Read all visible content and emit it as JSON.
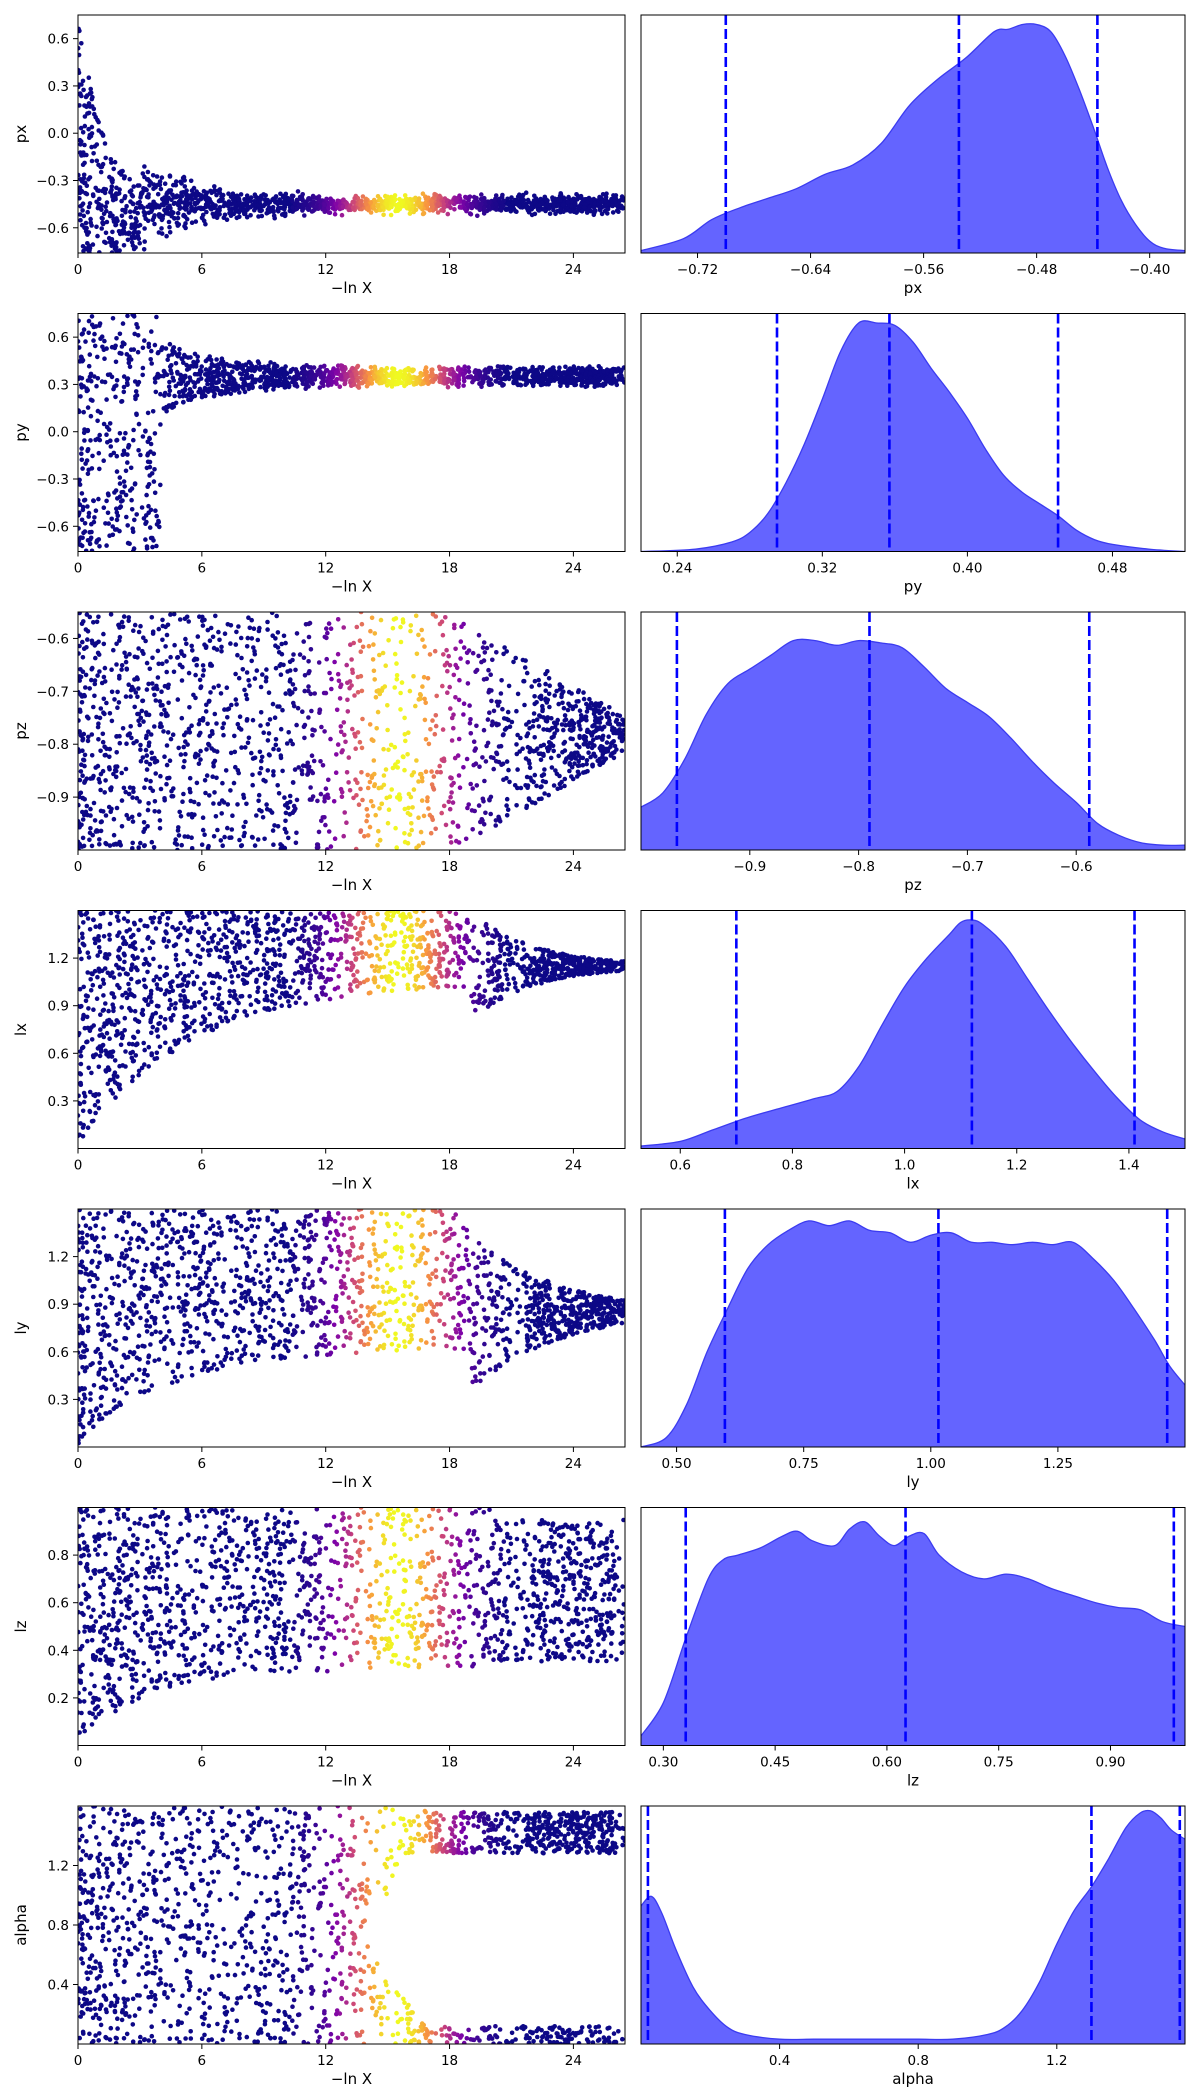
{
  "figure": {
    "kind": "nested-sampling trace plot",
    "scatter_colormap": "plasma",
    "scatter_base_color": "#0d0887",
    "kde_fill_color": "#6464ff",
    "kde_edge_color": "#3b3bf0",
    "quantile_line_color": "#0000ff"
  },
  "chart_data": [
    {
      "type": "scatter",
      "param": "px",
      "xlabel": "−ln X",
      "ylabel": "px",
      "xlim": [
        0,
        26.5
      ],
      "xticks": [
        0,
        6,
        12,
        18,
        24
      ],
      "xtick_labels": [
        "0",
        "6",
        "12",
        "18",
        "24"
      ],
      "ylim": [
        -0.76,
        0.75
      ],
      "yticks": [
        0.6,
        0.3,
        0.0,
        -0.3,
        -0.6
      ],
      "ytick_labels": [
        "0.6",
        "0.3",
        "0.0",
        "−0.3",
        "−0.6"
      ],
      "color_band_center": 15.5,
      "converge_value": -0.45
    },
    {
      "type": "area",
      "param": "px",
      "xlabel": "px",
      "xlim": [
        -0.76,
        -0.375
      ],
      "xticks": [
        -0.72,
        -0.64,
        -0.56,
        -0.48,
        -0.4
      ],
      "xtick_labels": [
        "−0.72",
        "−0.64",
        "−0.56",
        "−0.48",
        "−0.40"
      ],
      "quantiles": [
        -0.7,
        -0.535,
        -0.437
      ],
      "kde_x": [
        -0.76,
        -0.73,
        -0.71,
        -0.69,
        -0.67,
        -0.65,
        -0.63,
        -0.61,
        -0.59,
        -0.57,
        -0.55,
        -0.53,
        -0.51,
        -0.5,
        -0.49,
        -0.48,
        -0.47,
        -0.46,
        -0.45,
        -0.44,
        -0.43,
        -0.42,
        -0.41,
        -0.4,
        -0.39,
        -0.375
      ],
      "kde_y": [
        0.01,
        0.06,
        0.14,
        0.19,
        0.23,
        0.27,
        0.33,
        0.37,
        0.46,
        0.62,
        0.73,
        0.82,
        0.93,
        0.94,
        0.96,
        0.96,
        0.93,
        0.83,
        0.69,
        0.53,
        0.36,
        0.22,
        0.12,
        0.05,
        0.02,
        0.01
      ]
    },
    {
      "type": "scatter",
      "param": "py",
      "xlabel": "−ln X",
      "ylabel": "py",
      "xlim": [
        0,
        26.5
      ],
      "xticks": [
        0,
        6,
        12,
        18,
        24
      ],
      "xtick_labels": [
        "0",
        "6",
        "12",
        "18",
        "24"
      ],
      "ylim": [
        -0.76,
        0.75
      ],
      "yticks": [
        0.6,
        0.3,
        0.0,
        -0.3,
        -0.6
      ],
      "ytick_labels": [
        "0.6",
        "0.3",
        "0.0",
        "−0.3",
        "−0.6"
      ],
      "color_band_center": 15.5,
      "converge_value": 0.35
    },
    {
      "type": "area",
      "param": "py",
      "xlabel": "py",
      "xlim": [
        0.22,
        0.52
      ],
      "xticks": [
        0.24,
        0.32,
        0.4,
        0.48
      ],
      "xtick_labels": [
        "0.24",
        "0.32",
        "0.40",
        "0.48"
      ],
      "quantiles": [
        0.295,
        0.357,
        0.45
      ],
      "kde_x": [
        0.22,
        0.25,
        0.27,
        0.28,
        0.29,
        0.3,
        0.31,
        0.32,
        0.33,
        0.34,
        0.35,
        0.36,
        0.37,
        0.38,
        0.39,
        0.4,
        0.41,
        0.42,
        0.43,
        0.44,
        0.45,
        0.46,
        0.47,
        0.48,
        0.5,
        0.52
      ],
      "kde_y": [
        0.0,
        0.01,
        0.04,
        0.08,
        0.16,
        0.29,
        0.45,
        0.64,
        0.84,
        0.96,
        0.96,
        0.95,
        0.88,
        0.77,
        0.67,
        0.56,
        0.43,
        0.32,
        0.25,
        0.2,
        0.15,
        0.09,
        0.05,
        0.03,
        0.01,
        0.0
      ]
    },
    {
      "type": "scatter",
      "param": "pz",
      "xlabel": "−ln X",
      "ylabel": "pz",
      "xlim": [
        0,
        26.5
      ],
      "xticks": [
        0,
        6,
        12,
        18,
        24
      ],
      "xtick_labels": [
        "0",
        "6",
        "12",
        "18",
        "24"
      ],
      "ylim": [
        -1.0,
        -0.55
      ],
      "yticks": [
        -0.6,
        -0.7,
        -0.8,
        -0.9
      ],
      "ytick_labels": [
        "−0.6",
        "−0.7",
        "−0.8",
        "−0.9"
      ],
      "color_band_center": 15.5,
      "converge_value": -0.78
    },
    {
      "type": "area",
      "param": "pz",
      "xlabel": "pz",
      "xlim": [
        -1.0,
        -0.5
      ],
      "xticks": [
        -0.9,
        -0.8,
        -0.7,
        -0.6
      ],
      "xtick_labels": [
        "−0.9",
        "−0.8",
        "−0.7",
        "−0.6"
      ],
      "quantiles": [
        -0.967,
        -0.79,
        -0.588
      ],
      "kde_x": [
        -1.0,
        -0.98,
        -0.96,
        -0.94,
        -0.92,
        -0.9,
        -0.88,
        -0.86,
        -0.84,
        -0.82,
        -0.8,
        -0.78,
        -0.76,
        -0.74,
        -0.72,
        -0.7,
        -0.68,
        -0.66,
        -0.64,
        -0.62,
        -0.6,
        -0.58,
        -0.56,
        -0.54,
        -0.52,
        -0.5
      ],
      "kde_y": [
        0.18,
        0.24,
        0.38,
        0.57,
        0.7,
        0.76,
        0.82,
        0.88,
        0.88,
        0.86,
        0.88,
        0.87,
        0.85,
        0.77,
        0.68,
        0.62,
        0.56,
        0.47,
        0.37,
        0.28,
        0.2,
        0.11,
        0.06,
        0.03,
        0.02,
        0.02
      ]
    },
    {
      "type": "scatter",
      "param": "lx",
      "xlabel": "−ln X",
      "ylabel": "lx",
      "xlim": [
        0,
        26.5
      ],
      "xticks": [
        0,
        6,
        12,
        18,
        24
      ],
      "xtick_labels": [
        "0",
        "6",
        "12",
        "18",
        "24"
      ],
      "ylim": [
        0.0,
        1.5
      ],
      "yticks": [
        1.2,
        0.9,
        0.6,
        0.3
      ],
      "ytick_labels": [
        "1.2",
        "0.9",
        "0.6",
        "0.3"
      ],
      "color_band_center": 15.5,
      "converge_value": 1.15
    },
    {
      "type": "area",
      "param": "lx",
      "xlabel": "lx",
      "xlim": [
        0.53,
        1.5
      ],
      "xticks": [
        0.6,
        0.8,
        1.0,
        1.2,
        1.4
      ],
      "xtick_labels": [
        "0.6",
        "0.8",
        "1.0",
        "1.2",
        "1.4"
      ],
      "quantiles": [
        0.7,
        1.12,
        1.41
      ],
      "kde_x": [
        0.53,
        0.6,
        0.66,
        0.72,
        0.78,
        0.84,
        0.88,
        0.92,
        0.96,
        1.0,
        1.04,
        1.08,
        1.1,
        1.12,
        1.14,
        1.18,
        1.22,
        1.26,
        1.3,
        1.34,
        1.38,
        1.42,
        1.46,
        1.5
      ],
      "kde_y": [
        0.01,
        0.03,
        0.08,
        0.13,
        0.17,
        0.21,
        0.24,
        0.35,
        0.52,
        0.68,
        0.8,
        0.9,
        0.95,
        0.96,
        0.94,
        0.85,
        0.71,
        0.57,
        0.44,
        0.32,
        0.21,
        0.12,
        0.07,
        0.04
      ]
    },
    {
      "type": "scatter",
      "param": "ly",
      "xlabel": "−ln X",
      "ylabel": "ly",
      "xlim": [
        0,
        26.5
      ],
      "xticks": [
        0,
        6,
        12,
        18,
        24
      ],
      "xtick_labels": [
        "0",
        "6",
        "12",
        "18",
        "24"
      ],
      "ylim": [
        0.0,
        1.5
      ],
      "yticks": [
        1.2,
        0.9,
        0.6,
        0.3
      ],
      "ytick_labels": [
        "1.2",
        "0.9",
        "0.6",
        "0.3"
      ],
      "color_band_center": 15.5,
      "converge_value": 0.85
    },
    {
      "type": "area",
      "param": "ly",
      "xlabel": "ly",
      "xlim": [
        0.43,
        1.5
      ],
      "xticks": [
        0.5,
        0.75,
        1.0,
        1.25
      ],
      "xtick_labels": [
        "0.50",
        "0.75",
        "1.00",
        "1.25"
      ],
      "quantiles": [
        0.595,
        1.015,
        1.465
      ],
      "kde_x": [
        0.43,
        0.48,
        0.52,
        0.56,
        0.6,
        0.64,
        0.68,
        0.72,
        0.76,
        0.8,
        0.84,
        0.88,
        0.92,
        0.96,
        1.0,
        1.04,
        1.08,
        1.12,
        1.16,
        1.2,
        1.24,
        1.28,
        1.32,
        1.36,
        1.4,
        1.44,
        1.47,
        1.5
      ],
      "kde_y": [
        0.0,
        0.04,
        0.18,
        0.4,
        0.58,
        0.75,
        0.85,
        0.91,
        0.95,
        0.93,
        0.95,
        0.91,
        0.9,
        0.86,
        0.89,
        0.9,
        0.86,
        0.86,
        0.85,
        0.86,
        0.85,
        0.86,
        0.79,
        0.7,
        0.58,
        0.45,
        0.34,
        0.26
      ]
    },
    {
      "type": "scatter",
      "param": "lz",
      "xlabel": "−ln X",
      "ylabel": "lz",
      "xlim": [
        0,
        26.5
      ],
      "xticks": [
        0,
        6,
        12,
        18,
        24
      ],
      "xtick_labels": [
        "0",
        "6",
        "12",
        "18",
        "24"
      ],
      "ylim": [
        0.0,
        1.0
      ],
      "yticks": [
        0.8,
        0.6,
        0.4,
        0.2
      ],
      "ytick_labels": [
        "0.8",
        "0.6",
        "0.4",
        "0.2"
      ],
      "color_band_center": 15.5,
      "converge_value": 0.65
    },
    {
      "type": "area",
      "param": "lz",
      "xlabel": "lz",
      "xlim": [
        0.27,
        1.0
      ],
      "xticks": [
        0.3,
        0.45,
        0.6,
        0.75,
        0.9
      ],
      "xtick_labels": [
        "0.30",
        "0.45",
        "0.60",
        "0.75",
        "0.90"
      ],
      "quantiles": [
        0.33,
        0.625,
        0.985
      ],
      "kde_x": [
        0.27,
        0.3,
        0.33,
        0.36,
        0.38,
        0.4,
        0.43,
        0.46,
        0.48,
        0.5,
        0.53,
        0.55,
        0.57,
        0.59,
        0.61,
        0.63,
        0.65,
        0.67,
        0.7,
        0.73,
        0.76,
        0.79,
        0.82,
        0.85,
        0.88,
        0.91,
        0.94,
        0.97,
        1.0
      ],
      "kde_y": [
        0.04,
        0.18,
        0.45,
        0.7,
        0.78,
        0.8,
        0.83,
        0.88,
        0.9,
        0.86,
        0.84,
        0.91,
        0.94,
        0.88,
        0.84,
        0.88,
        0.89,
        0.8,
        0.73,
        0.7,
        0.72,
        0.7,
        0.66,
        0.63,
        0.6,
        0.58,
        0.57,
        0.52,
        0.5
      ]
    },
    {
      "type": "scatter",
      "param": "alpha",
      "xlabel": "−ln X",
      "ylabel": "alpha",
      "xlim": [
        0,
        26.5
      ],
      "xticks": [
        0,
        6,
        12,
        18,
        24
      ],
      "xtick_labels": [
        "0",
        "6",
        "12",
        "18",
        "24"
      ],
      "ylim": [
        0.0,
        1.6
      ],
      "yticks": [
        1.2,
        0.8,
        0.4
      ],
      "ytick_labels": [
        "1.2",
        "0.8",
        "0.4"
      ],
      "color_band_center": 15.5,
      "converge_value": 1.5
    },
    {
      "type": "area",
      "param": "alpha",
      "xlabel": "alpha",
      "xlim": [
        0.0,
        1.57
      ],
      "xticks": [
        0.4,
        0.8,
        1.2
      ],
      "xtick_labels": [
        "0.4",
        "0.8",
        "1.2"
      ],
      "quantiles": [
        0.02,
        1.3,
        1.555
      ],
      "kde_x": [
        0.0,
        0.03,
        0.06,
        0.1,
        0.15,
        0.2,
        0.25,
        0.3,
        0.4,
        0.5,
        0.6,
        0.7,
        0.8,
        0.9,
        1.0,
        1.05,
        1.1,
        1.15,
        1.2,
        1.25,
        1.3,
        1.35,
        1.4,
        1.44,
        1.47,
        1.5,
        1.53,
        1.57
      ],
      "kde_y": [
        0.58,
        0.62,
        0.55,
        0.4,
        0.24,
        0.14,
        0.07,
        0.04,
        0.02,
        0.02,
        0.02,
        0.02,
        0.02,
        0.02,
        0.04,
        0.07,
        0.14,
        0.26,
        0.42,
        0.56,
        0.66,
        0.78,
        0.91,
        0.97,
        0.98,
        0.95,
        0.9,
        0.86
      ]
    }
  ]
}
